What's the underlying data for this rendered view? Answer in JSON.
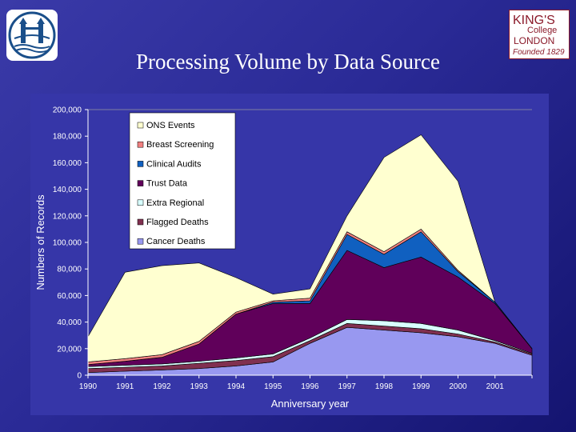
{
  "slide": {
    "title": "Processing Volume by Data Source"
  },
  "logos": {
    "left_icon": "tower-bridge-emblem-icon",
    "right_lines": [
      "KING'S",
      "College",
      "LONDON",
      "Founded 1829"
    ]
  },
  "colors": {
    "background": "#2a2a96",
    "chart_background": "#3636a8",
    "ons_events": "#ffffd0",
    "breast_screening": "#f08080",
    "clinical_audits": "#1060c0",
    "trust_data": "#60005a",
    "extra_regional": "#d8ffff",
    "flagged_deaths": "#803050",
    "cancer_deaths": "#9898f0"
  },
  "chart_data": {
    "type": "area",
    "stacked": true,
    "title": "",
    "xlabel": "Anniversary year",
    "ylabel": "Numbers of Records",
    "x": [
      "1990",
      "1991",
      "1992",
      "1993",
      "1994",
      "1995",
      "1996",
      "1997",
      "1998",
      "1999",
      "2000",
      "2001",
      ""
    ],
    "ylim": [
      0,
      200000
    ],
    "yticks": [
      0,
      20000,
      40000,
      60000,
      80000,
      100000,
      120000,
      140000,
      160000,
      180000,
      200000
    ],
    "ytick_labels": [
      "0",
      "20,000",
      "40,000",
      "60,000",
      "80,000",
      "100,000",
      "120,000",
      "140,000",
      "160,000",
      "180,000",
      "200,000"
    ],
    "grid": false,
    "legend_position": "top-left",
    "series": [
      {
        "name": "Cancer Deaths",
        "color": "#9898f0",
        "values": [
          2000,
          3000,
          4000,
          5000,
          7000,
          10000,
          24000,
          36000,
          34000,
          32000,
          29000,
          24000,
          15000
        ]
      },
      {
        "name": "Flagged Deaths",
        "color": "#803050",
        "values": [
          3000,
          3000,
          3000,
          4000,
          4000,
          4000,
          2000,
          3000,
          3000,
          3000,
          2000,
          1000,
          1000
        ]
      },
      {
        "name": "Extra Regional",
        "color": "#d8ffff",
        "values": [
          1500,
          1500,
          1500,
          1500,
          2000,
          2000,
          2000,
          3000,
          4000,
          4000,
          3000,
          1000,
          500
        ]
      },
      {
        "name": "Trust Data",
        "color": "#60005a",
        "values": [
          1500,
          3000,
          5000,
          13000,
          33000,
          38000,
          26000,
          52000,
          40000,
          50000,
          40000,
          28000,
          3500
        ]
      },
      {
        "name": "Clinical Audits",
        "color": "#1060c0",
        "values": [
          0,
          0,
          0,
          0,
          0,
          1000,
          2000,
          12000,
          10000,
          19000,
          4000,
          1000,
          0
        ]
      },
      {
        "name": "Breast Screening",
        "color": "#f08080",
        "values": [
          2000,
          2000,
          2000,
          2000,
          1500,
          1000,
          2000,
          2000,
          2000,
          2000,
          1000,
          0,
          0
        ]
      },
      {
        "name": "ONS Events",
        "color": "#ffffd0",
        "values": [
          19000,
          65000,
          67000,
          59000,
          26000,
          5000,
          7000,
          12000,
          71000,
          71000,
          67000,
          0,
          0
        ]
      }
    ],
    "legend_order": [
      "ONS Events",
      "Breast Screening",
      "Clinical Audits",
      "Trust Data",
      "Extra Regional",
      "Flagged Deaths",
      "Cancer Deaths"
    ]
  }
}
